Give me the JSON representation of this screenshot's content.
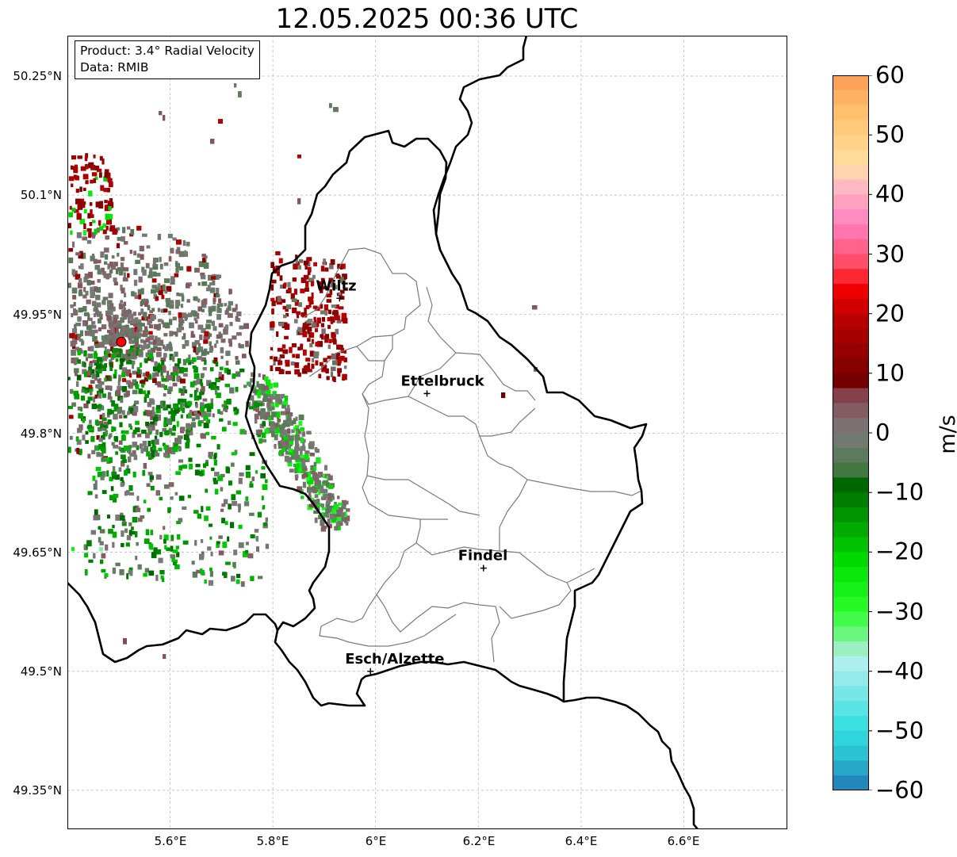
{
  "title": "12.05.2025 00:36 UTC",
  "info": {
    "product": "Product: 3.4° Radial Velocity",
    "data": "Data: RMIB"
  },
  "axes": {
    "lat_labels": [
      "50.25°N",
      "50.1°N",
      "49.95°N",
      "49.8°N",
      "49.65°N",
      "49.5°N",
      "49.35°N"
    ],
    "lon_labels": [
      "5.6°E",
      "5.8°E",
      "6°E",
      "6.2°E",
      "6.4°E",
      "6.6°E"
    ]
  },
  "cities": [
    {
      "name": "Wiltz",
      "lon": 5.93,
      "lat": 49.97
    },
    {
      "name": "Ettelbruck",
      "lon": 6.1,
      "lat": 49.85
    },
    {
      "name": "Findel",
      "lon": 6.21,
      "lat": 49.63
    },
    {
      "name": "Esch/Alzette",
      "lon": 5.99,
      "lat": 49.5
    }
  ],
  "radar": {
    "lon": 5.505,
    "lat": 49.915,
    "color": "#ff0000"
  },
  "colorbar": {
    "label": "m/s",
    "ticks": [
      "60",
      "50",
      "40",
      "30",
      "20",
      "10",
      "0",
      "−10",
      "−20",
      "−30",
      "−40",
      "−50",
      "−60"
    ],
    "min": -60,
    "max": 60,
    "stops": [
      [
        -60,
        "#1f78b4"
      ],
      [
        -55,
        "#2ab8d0"
      ],
      [
        -50,
        "#2fdede"
      ],
      [
        -40,
        "#a0ecec"
      ],
      [
        -37,
        "#bff0f0"
      ],
      [
        -36,
        "#90f0b0"
      ],
      [
        -30,
        "#2cff2c"
      ],
      [
        -22,
        "#00e000"
      ],
      [
        -15,
        "#00a000"
      ],
      [
        -8,
        "#006000"
      ],
      [
        -6,
        "#4a7a4a"
      ],
      [
        0,
        "#7a7a7a"
      ],
      [
        6,
        "#884a55"
      ],
      [
        8,
        "#700000"
      ],
      [
        20,
        "#c00000"
      ],
      [
        25,
        "#ff0000"
      ],
      [
        27,
        "#ff4050"
      ],
      [
        35,
        "#ff80c0"
      ],
      [
        42,
        "#ffc0c0"
      ],
      [
        45,
        "#ffe0a0"
      ],
      [
        55,
        "#ffbb66"
      ],
      [
        60,
        "#ff9955"
      ]
    ]
  }
}
